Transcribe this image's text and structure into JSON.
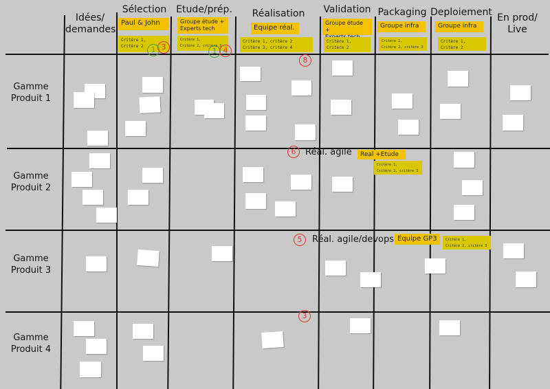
{
  "columns": [
    "Idées/\ndemandes",
    "Sélection",
    "Etude/prép.",
    "Réalisation",
    "Validation",
    "Packaging",
    "Deploiement",
    "En prod/\nLive"
  ],
  "rows": [
    "Gamme\nProduit 1",
    "Gamme\nProduit 2",
    "Gamme\nProduit 3",
    "Gamme\nProduit 4"
  ],
  "tags": {
    "selection": "Paul & John",
    "etude": "Groupe étude +\nExperts tech",
    "realisation": "Equipe réal.",
    "validation": "Groupe étude +\nExperts tech",
    "packaging": "Groupe infra",
    "deploiement": "Groupe infra",
    "real_etude": "Real +Etude",
    "equipe_gp3": "Equipe GP3"
  },
  "criteria": {
    "selection": "Critère 1,\nCritère 2",
    "etude": "Critère 1,\nCritère 2, critère 3",
    "realisation": "Critère 1, critère 2\nCritère 3, critère 4",
    "validation": "Critère 1,\nCritère 2",
    "packaging": "Critère 1,\nCritère 2, critère 3",
    "deploiement": "Critère 1,\nCritère 2",
    "agile": "Critère 1,\nCritère 2, critère 3",
    "devops": "Critère 1,\nCritère 2, critère 3"
  },
  "limits": {
    "selection_green": "1",
    "selection_red": "3",
    "etude_green": "1",
    "etude_red": "4",
    "realisation": "8",
    "agile": "6",
    "devops": "5",
    "produit4": "3"
  },
  "lane_labels": {
    "agile": "Réal. agile",
    "devops": "Réal. agile/devops"
  },
  "colors": {
    "background": "#c9c9c9",
    "tag": "#f2c200",
    "criteria": "#d9c800",
    "wip_red": "#d9362f",
    "wip_green": "#5c9a45"
  }
}
